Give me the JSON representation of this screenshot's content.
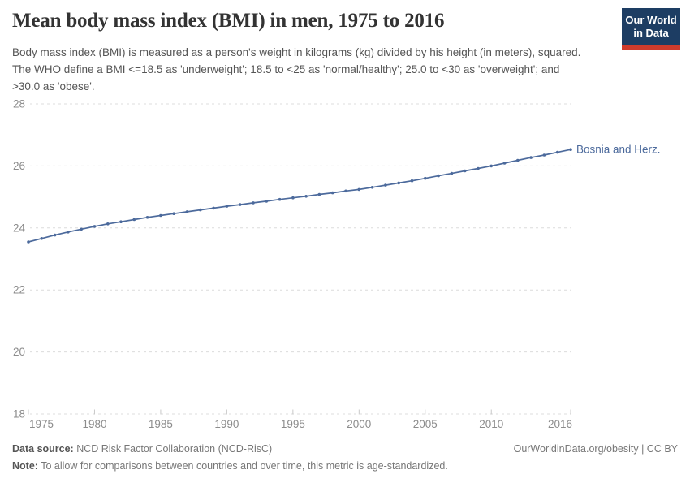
{
  "header": {
    "title": "Mean body mass index (BMI) in men, 1975 to 2016",
    "logo_line1": "Our World",
    "logo_line2": "in Data"
  },
  "subtitle": "Body mass index (BMI) is measured as a person's weight in kilograms (kg) divided by his height (in meters), squared. The WHO define a BMI <=18.5 as 'underweight'; 18.5 to <25 as 'normal/healthy'; 25.0 to <30 as 'overweight'; and >30.0 as 'obese'.",
  "chart_data": {
    "type": "line",
    "title": "Mean body mass index (BMI) in men, 1975 to 2016",
    "xlabel": "",
    "ylabel": "",
    "xlim": [
      1975,
      2016
    ],
    "ylim": [
      18,
      28
    ],
    "yticks": [
      18,
      20,
      22,
      24,
      26,
      28
    ],
    "xticks": [
      1975,
      1980,
      1985,
      1990,
      1995,
      2000,
      2005,
      2010,
      2016
    ],
    "grid": true,
    "legend_position": "end-of-line-label",
    "x": [
      1975,
      1976,
      1977,
      1978,
      1979,
      1980,
      1981,
      1982,
      1983,
      1984,
      1985,
      1986,
      1987,
      1988,
      1989,
      1990,
      1991,
      1992,
      1993,
      1994,
      1995,
      1996,
      1997,
      1998,
      1999,
      2000,
      2001,
      2002,
      2003,
      2004,
      2005,
      2006,
      2007,
      2008,
      2009,
      2010,
      2011,
      2012,
      2013,
      2014,
      2015,
      2016
    ],
    "series": [
      {
        "name": "Bosnia and Herz.",
        "values": [
          23.55,
          23.66,
          23.77,
          23.87,
          23.96,
          24.05,
          24.13,
          24.2,
          24.27,
          24.34,
          24.4,
          24.46,
          24.52,
          24.58,
          24.64,
          24.7,
          24.75,
          24.81,
          24.86,
          24.92,
          24.97,
          25.02,
          25.08,
          25.13,
          25.19,
          25.24,
          25.31,
          25.38,
          25.45,
          25.52,
          25.6,
          25.68,
          25.76,
          25.84,
          25.92,
          26.0,
          26.09,
          26.18,
          26.27,
          26.35,
          26.44,
          26.53
        ]
      }
    ]
  },
  "footer": {
    "data_source_label": "Data source:",
    "data_source_text": " NCD Risk Factor Collaboration (NCD-RisC)",
    "note_label": "Note:",
    "note_text": " To allow for comparisons between countries and over time, this metric is age-standardized.",
    "right_text": "OurWorldinData.org/obesity | CC BY"
  },
  "colors": {
    "line": "#4c6a9c",
    "entity_label": "#4c6a9c",
    "grid": "#dcdcdc",
    "tick": "#c9c9c9",
    "axis_text": "#8c8c8c",
    "logo_bg": "#1d3d63",
    "logo_stripe": "#cf3b2c"
  }
}
